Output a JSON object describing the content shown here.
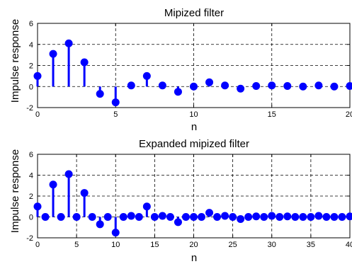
{
  "stem_color": "#0000ff",
  "chart_data": [
    {
      "type": "stem",
      "title": "Mipized filter",
      "xlabel": "n",
      "ylabel": "Impulse response",
      "xlim": [
        0,
        20
      ],
      "ylim": [
        -2,
        6
      ],
      "xticks": [
        0,
        5,
        10,
        15,
        20
      ],
      "yticks": [
        -2,
        0,
        2,
        4,
        6
      ],
      "grid": true,
      "x": [
        0,
        1,
        2,
        3,
        4,
        5,
        6,
        7,
        8,
        9,
        10,
        11,
        12,
        13,
        14,
        15,
        16,
        17,
        18,
        19,
        20
      ],
      "y": [
        1.0,
        3.1,
        4.1,
        2.3,
        -0.7,
        -1.5,
        0.1,
        1.0,
        0.1,
        -0.5,
        0.0,
        0.4,
        0.1,
        -0.2,
        0.05,
        0.1,
        0.05,
        0.0,
        0.1,
        0.0,
        0.05
      ]
    },
    {
      "type": "stem",
      "title": "Expanded mipized filter",
      "xlabel": "n",
      "ylabel": "Impulse response",
      "xlim": [
        0,
        40
      ],
      "ylim": [
        -2,
        6
      ],
      "xticks": [
        0,
        5,
        10,
        15,
        20,
        25,
        30,
        35,
        40
      ],
      "yticks": [
        -2,
        0,
        2,
        4,
        6
      ],
      "grid": true,
      "x": [
        0,
        1,
        2,
        3,
        4,
        5,
        6,
        7,
        8,
        9,
        10,
        11,
        12,
        13,
        14,
        15,
        16,
        17,
        18,
        19,
        20,
        21,
        22,
        23,
        24,
        25,
        26,
        27,
        28,
        29,
        30,
        31,
        32,
        33,
        34,
        35,
        36,
        37,
        38,
        39,
        40
      ],
      "y": [
        1.0,
        0,
        3.1,
        0,
        4.1,
        0,
        2.3,
        0,
        -0.7,
        0,
        -1.5,
        0,
        0.1,
        0,
        1.0,
        0,
        0.1,
        0,
        -0.5,
        0,
        0.0,
        0,
        0.4,
        0,
        0.1,
        0,
        -0.2,
        0,
        0.05,
        0,
        0.1,
        0,
        0.05,
        0,
        0.0,
        0,
        0.1,
        0,
        0.0,
        0,
        0.05
      ]
    }
  ]
}
